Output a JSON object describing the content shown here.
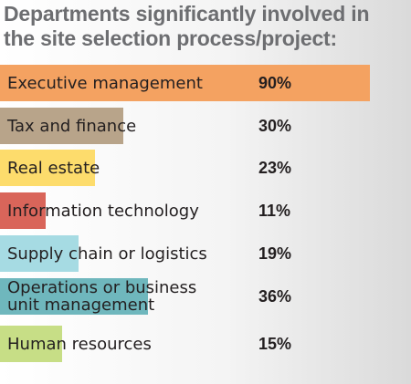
{
  "title": "Departments significantly involved in the site selection process/project:",
  "chart_data": {
    "type": "bar",
    "orientation": "horizontal",
    "title": "Departments significantly involved in the site selection process/project:",
    "xlabel": "",
    "ylabel": "",
    "xlim": [
      0,
      100
    ],
    "grid": false,
    "legend": "none",
    "categories": [
      "Executive management",
      "Tax and finance",
      "Real estate",
      "Information technology",
      "Supply chain or logistics",
      "Operations or business\nunit management",
      "Human resources"
    ],
    "values": [
      90,
      30,
      23,
      11,
      19,
      36,
      15
    ],
    "value_labels": [
      "90%",
      "30%",
      "23%",
      "11%",
      "19%",
      "36%",
      "15%"
    ],
    "colors": [
      "#f4a261",
      "#b8a48a",
      "#fddc6c",
      "#d9655a",
      "#a6dbe3",
      "#6fb7bd",
      "#c7de86"
    ]
  }
}
